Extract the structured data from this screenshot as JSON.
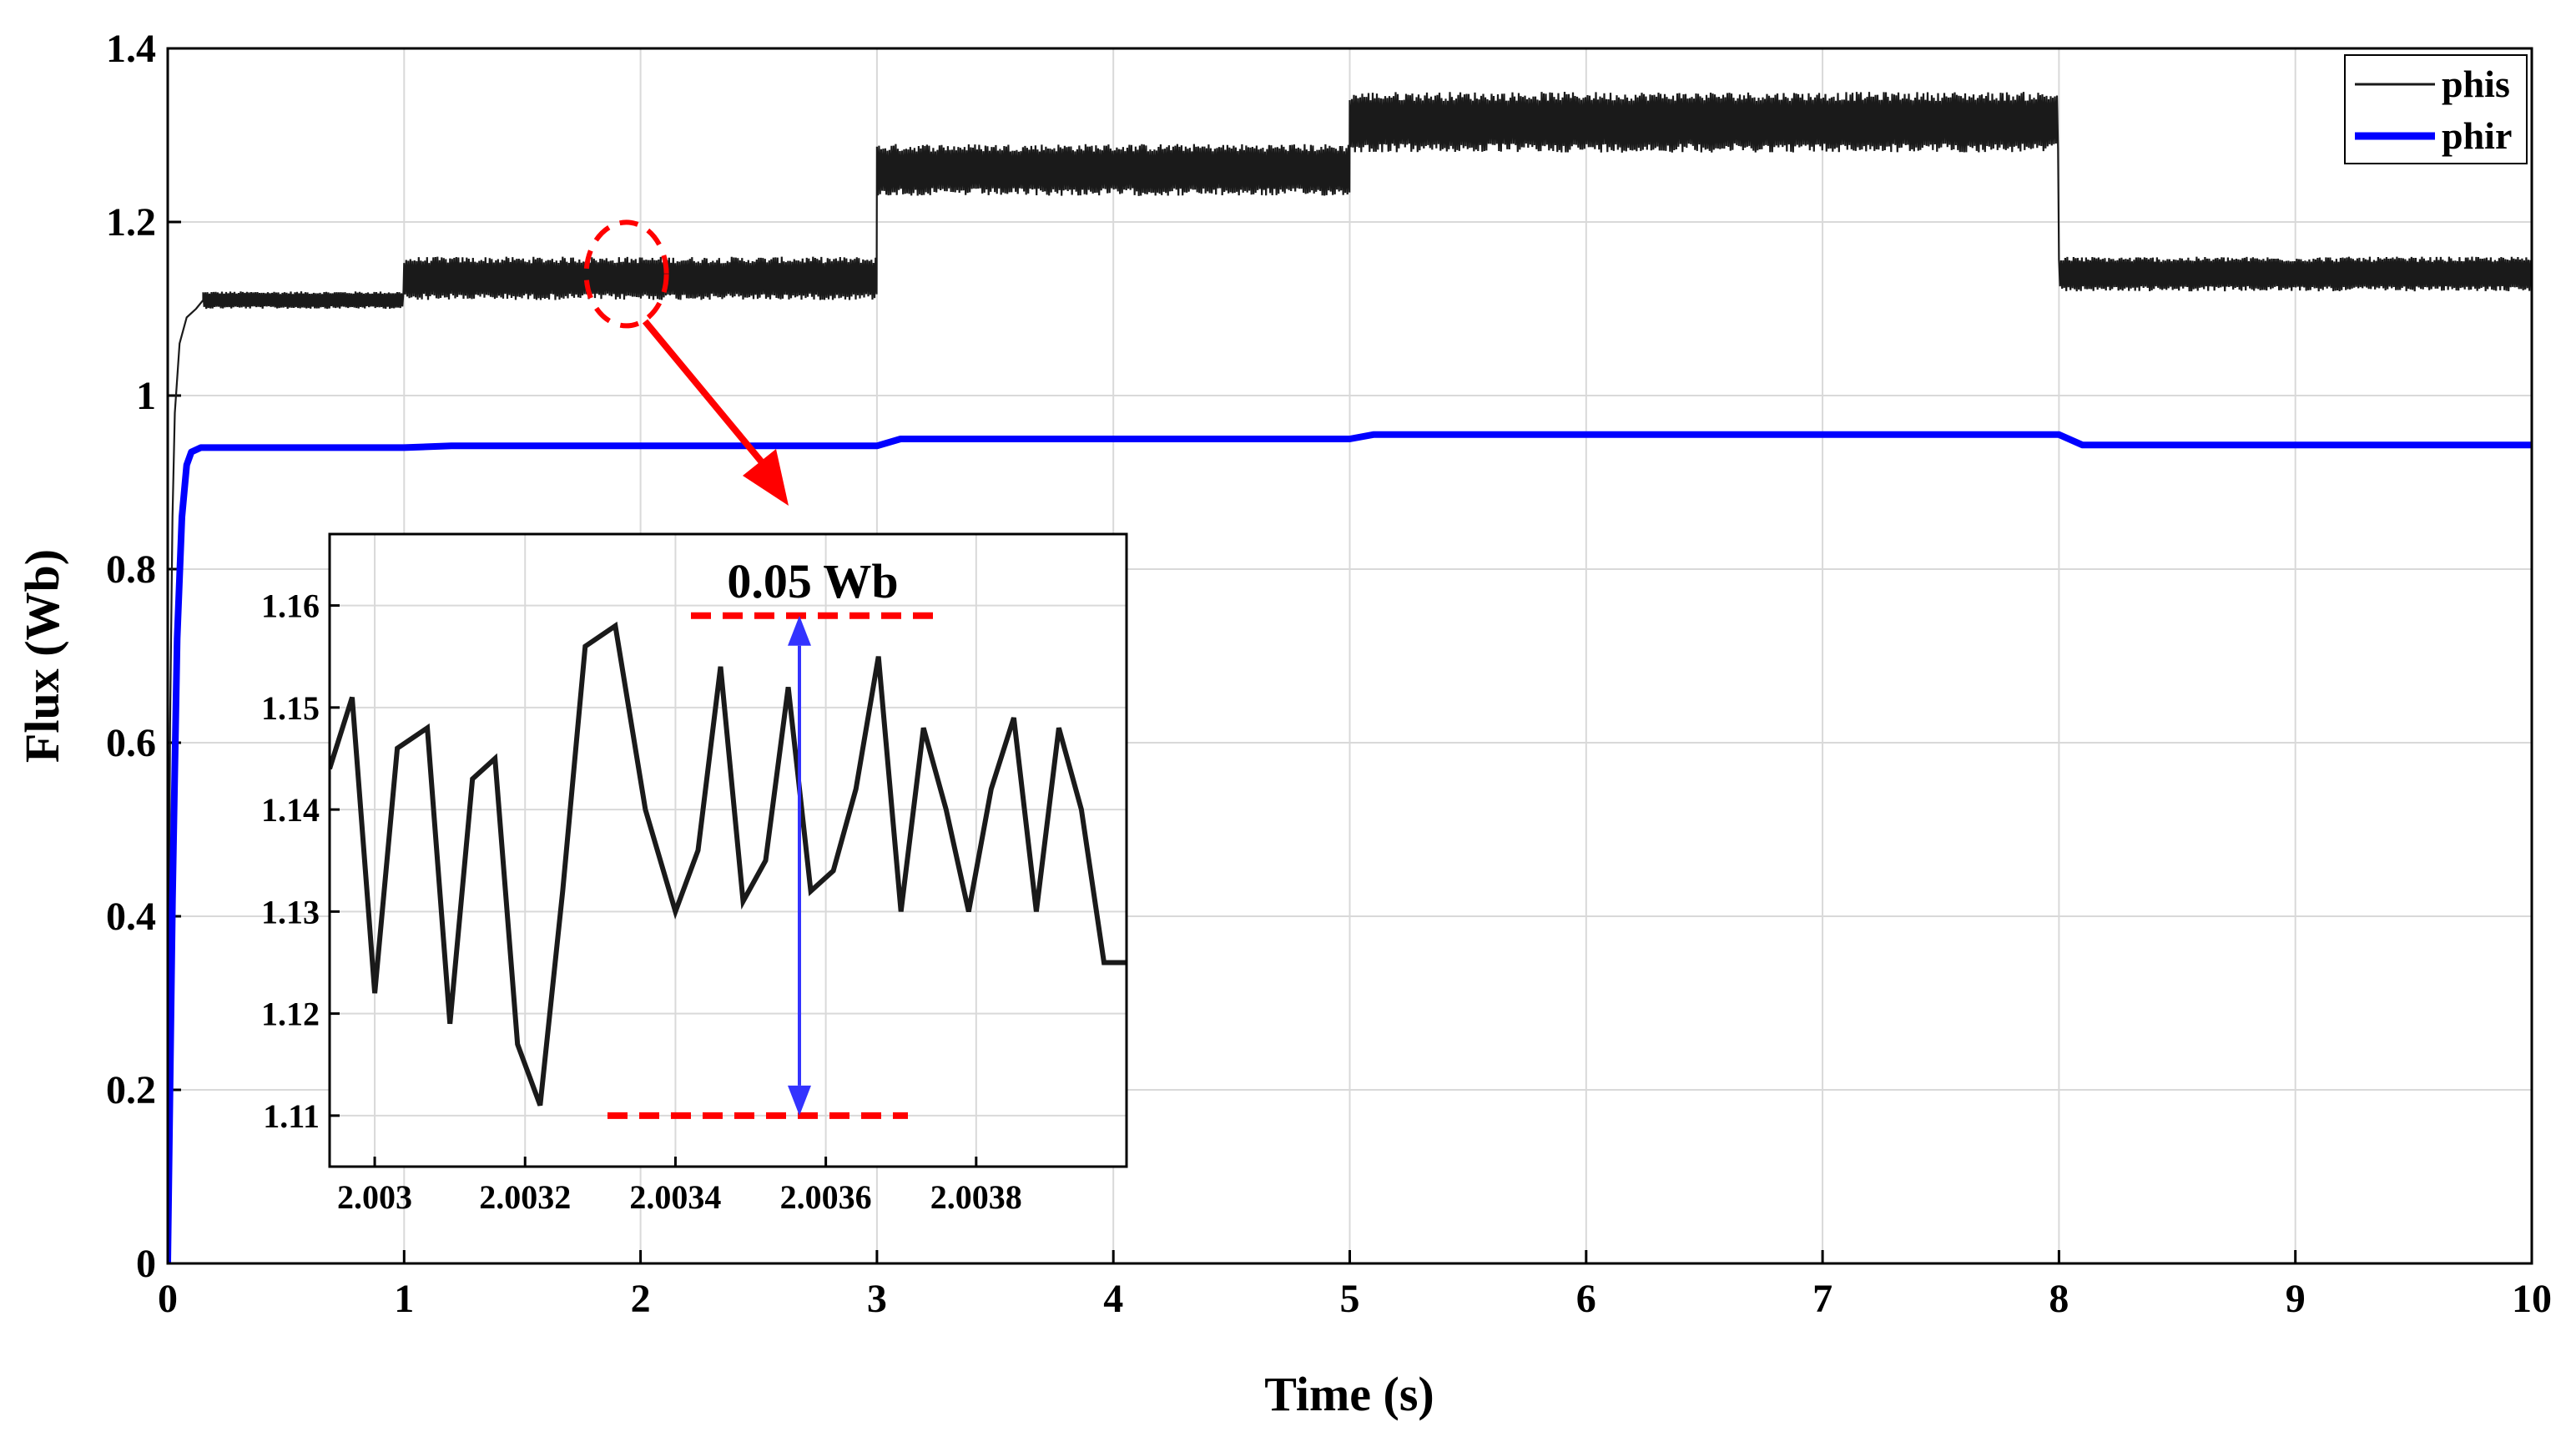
{
  "chart_data": {
    "type": "line",
    "xlabel": "Time (s)",
    "ylabel": "Flux (Wb)",
    "xlim": [
      0,
      10
    ],
    "ylim": [
      0,
      1.4
    ],
    "grid": true,
    "legend_position": "top-right",
    "x_ticks": [
      "0",
      "1",
      "2",
      "3",
      "4",
      "5",
      "6",
      "7",
      "8",
      "9",
      "10"
    ],
    "y_ticks": [
      "0",
      "0.2",
      "0.4",
      "0.6",
      "0.8",
      "1",
      "1.2",
      "1.4"
    ],
    "colors": {
      "phis": "#1a1a1a",
      "phir": "#0000ff",
      "annotation": "#ff0000",
      "arrow": "#3333ff"
    },
    "series": [
      {
        "name": "phis",
        "segments": [
          {
            "t_start": 0.15,
            "t_end": 1.0,
            "min": 1.1,
            "max": 1.12
          },
          {
            "t_start": 1.0,
            "t_end": 3.0,
            "min": 1.11,
            "max": 1.16
          },
          {
            "t_start": 3.0,
            "t_end": 5.0,
            "min": 1.23,
            "max": 1.29
          },
          {
            "t_start": 5.0,
            "t_end": 8.0,
            "min": 1.28,
            "max": 1.35
          },
          {
            "t_start": 8.0,
            "t_end": 10.0,
            "min": 1.12,
            "max": 1.16
          }
        ]
      },
      {
        "name": "phir",
        "x": [
          0,
          0.02,
          0.04,
          0.06,
          0.08,
          0.1,
          0.14,
          0.2,
          1.0,
          1.2,
          3.0,
          3.1,
          5.0,
          5.1,
          8.0,
          8.1,
          10.0
        ],
        "y": [
          0,
          0.42,
          0.72,
          0.86,
          0.92,
          0.935,
          0.94,
          0.94,
          0.94,
          0.942,
          0.942,
          0.95,
          0.95,
          0.955,
          0.955,
          0.943,
          0.943
        ]
      }
    ],
    "inset": {
      "xlim": [
        2.00294,
        2.004
      ],
      "ylim": [
        1.105,
        1.167
      ],
      "x_ticks": [
        "2.003",
        "2.0032",
        "2.0034",
        "2.0036",
        "2.0038"
      ],
      "y_ticks": [
        "1.11",
        "1.12",
        "1.13",
        "1.14",
        "1.15",
        "1.16"
      ],
      "series": {
        "name": "phis",
        "x": [
          2.00294,
          2.00297,
          2.003,
          2.00303,
          2.00307,
          2.0031,
          2.00313,
          2.00316,
          2.00319,
          2.00322,
          2.00325,
          2.00328,
          2.00332,
          2.00336,
          2.0034,
          2.00343,
          2.00346,
          2.00349,
          2.00352,
          2.00355,
          2.00358,
          2.00361,
          2.00364,
          2.00367,
          2.0037,
          2.00373,
          2.00376,
          2.00379,
          2.00382,
          2.00385,
          2.00388,
          2.00391,
          2.00394,
          2.00397,
          2.004
        ],
        "y": [
          1.144,
          1.151,
          1.122,
          1.146,
          1.148,
          1.119,
          1.143,
          1.145,
          1.117,
          1.111,
          1.132,
          1.156,
          1.158,
          1.14,
          1.13,
          1.136,
          1.154,
          1.131,
          1.135,
          1.152,
          1.132,
          1.134,
          1.142,
          1.155,
          1.13,
          1.148,
          1.14,
          1.13,
          1.142,
          1.149,
          1.13,
          1.148,
          1.14,
          1.125,
          1.125
        ]
      },
      "peak_line_y": 1.159,
      "trough_line_y": 1.11,
      "peak_to_peak_label": "0.05 Wb"
    },
    "zoom_marker": {
      "t": 2.0,
      "flux": 1.14
    }
  }
}
